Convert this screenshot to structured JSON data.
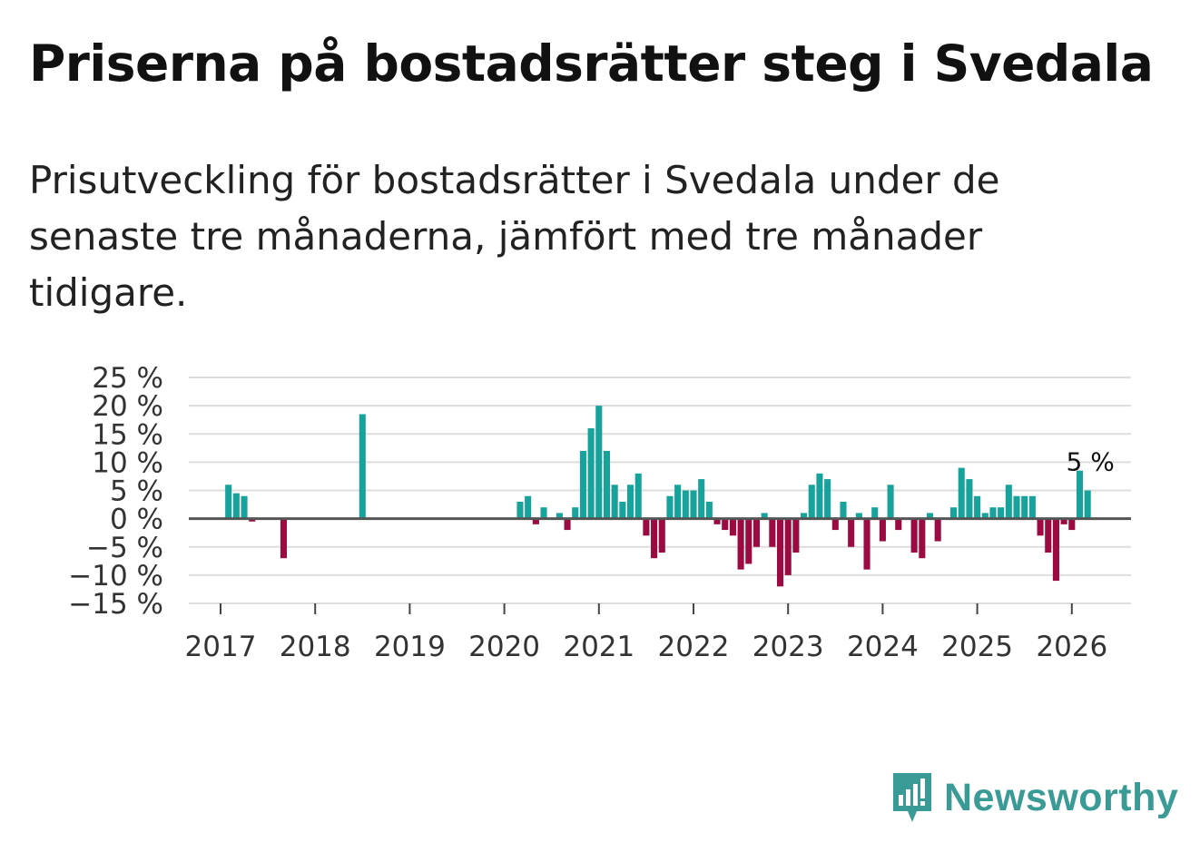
{
  "title": "Priserna på bostadsrätter steg i Svedala",
  "subtitle": "Prisutveckling för bostadsrätter i Svedala under de senaste tre månaderna, jämfört med tre månader tidigare.",
  "brand": {
    "name": "Newsworthy",
    "icon": "newsworthy-logo-icon"
  },
  "colors": {
    "positive": "#17a39b",
    "negative": "#9b0a40",
    "grid": "#dddddd",
    "zero": "#555555",
    "brand": "#3a9a96"
  },
  "chart_data": {
    "type": "bar",
    "ylabel": "",
    "ylim": [
      -15,
      25
    ],
    "yticks": [
      25,
      20,
      15,
      10,
      5,
      0,
      -5,
      -10,
      -15
    ],
    "ytick_labels": [
      "25 %",
      "20 %",
      "15 %",
      "10 %",
      "5 %",
      "0 %",
      "−5 %",
      "−10 %",
      "−15 %"
    ],
    "xtick_labels": [
      "2017",
      "2018",
      "2019",
      "2020",
      "2021",
      "2022",
      "2023",
      "2024",
      "2025",
      "2026"
    ],
    "start": "2017-01",
    "values": [
      null,
      6,
      4.5,
      4,
      -0.5,
      null,
      null,
      null,
      -7,
      null,
      null,
      null,
      null,
      null,
      null,
      null,
      null,
      null,
      18.5,
      null,
      null,
      null,
      null,
      null,
      null,
      null,
      null,
      null,
      null,
      null,
      null,
      null,
      null,
      null,
      null,
      null,
      null,
      null,
      3,
      4,
      -1,
      2,
      null,
      1,
      -2,
      2,
      12,
      16,
      20,
      12,
      6,
      3,
      6,
      8,
      -3,
      -7,
      -6,
      4,
      6,
      5,
      5,
      7,
      3,
      -1,
      -2,
      -3,
      -9,
      -8,
      -5,
      1,
      -5,
      -12,
      -10,
      -6,
      1,
      6,
      8,
      7,
      -2,
      3,
      -5,
      1,
      -9,
      2,
      -4,
      6,
      -2,
      null,
      -6,
      -7,
      1,
      -4,
      null,
      2,
      9,
      7,
      4,
      1,
      2,
      2,
      6,
      4,
      4,
      4,
      -3,
      -6,
      -11,
      -1,
      -2,
      8.5,
      5
    ],
    "annotation": {
      "label": "5 %",
      "value": 5
    }
  }
}
